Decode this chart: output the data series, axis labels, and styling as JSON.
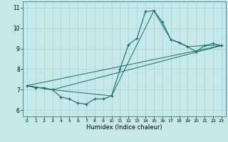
{
  "title": "",
  "xlabel": "Humidex (Indice chaleur)",
  "bg_color": "#c5e8e8",
  "line_color": "#1a6b6b",
  "grid_color": "#aad0d0",
  "xlim": [
    -0.5,
    23.5
  ],
  "ylim": [
    5.7,
    11.3
  ],
  "xticks": [
    0,
    1,
    2,
    3,
    4,
    5,
    6,
    7,
    8,
    9,
    10,
    11,
    12,
    13,
    14,
    15,
    16,
    17,
    18,
    19,
    20,
    21,
    22,
    23
  ],
  "yticks": [
    6,
    7,
    8,
    9,
    10,
    11
  ],
  "curve1_x": [
    0,
    1,
    2,
    3,
    4,
    5,
    6,
    7,
    8,
    9,
    10,
    11,
    12,
    13,
    14,
    15,
    16,
    17,
    18,
    19,
    20,
    21,
    22,
    23
  ],
  "curve1_y": [
    7.2,
    7.1,
    7.1,
    7.0,
    6.65,
    6.55,
    6.35,
    6.3,
    6.55,
    6.55,
    6.7,
    8.0,
    9.2,
    9.5,
    10.8,
    10.85,
    10.3,
    9.45,
    9.3,
    9.1,
    8.85,
    9.15,
    9.25,
    9.15
  ],
  "curve2_x": [
    0,
    3,
    10,
    15,
    17,
    19,
    21,
    23
  ],
  "curve2_y": [
    7.2,
    7.0,
    6.7,
    10.85,
    9.45,
    9.1,
    9.15,
    9.15
  ],
  "curve3_x": [
    0,
    3,
    23
  ],
  "curve3_y": [
    7.2,
    7.0,
    9.15
  ],
  "curve4_x": [
    0,
    23
  ],
  "curve4_y": [
    7.2,
    9.15
  ]
}
